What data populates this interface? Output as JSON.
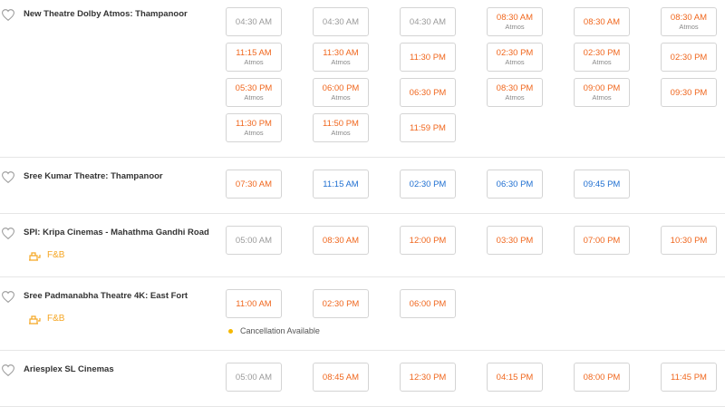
{
  "theatres": [
    {
      "name": "New Theatre Dolby Atmos: Thampanoor",
      "shows": [
        {
          "time": "04:30 AM",
          "color": "#9b9b9b"
        },
        {
          "time": "04:30 AM",
          "color": "#9b9b9b"
        },
        {
          "time": "04:30 AM",
          "color": "#9b9b9b"
        },
        {
          "time": "08:30 AM",
          "tag": "Atmos",
          "color": "#f0671e"
        },
        {
          "time": "08:30 AM",
          "color": "#f0671e"
        },
        {
          "time": "08:30 AM",
          "tag": "Atmos",
          "color": "#f0671e"
        },
        {
          "time": "11:15 AM",
          "tag": "Atmos",
          "color": "#f0671e"
        },
        {
          "time": "11:30 AM",
          "tag": "Atmos",
          "color": "#f0671e"
        },
        {
          "time": "11:30 PM",
          "color": "#f0671e"
        },
        {
          "time": "02:30 PM",
          "tag": "Atmos",
          "color": "#f0671e"
        },
        {
          "time": "02:30 PM",
          "tag": "Atmos",
          "color": "#f0671e"
        },
        {
          "time": "02:30 PM",
          "color": "#f0671e"
        },
        {
          "time": "05:30 PM",
          "tag": "Atmos",
          "color": "#f0671e"
        },
        {
          "time": "06:00 PM",
          "tag": "Atmos",
          "color": "#f0671e"
        },
        {
          "time": "06:30 PM",
          "color": "#f0671e"
        },
        {
          "time": "08:30 PM",
          "tag": "Atmos",
          "color": "#f0671e"
        },
        {
          "time": "09:00 PM",
          "tag": "Atmos",
          "color": "#f0671e"
        },
        {
          "time": "09:30 PM",
          "color": "#f0671e"
        },
        {
          "time": "11:30 PM",
          "tag": "Atmos",
          "color": "#f0671e"
        },
        {
          "time": "11:50 PM",
          "tag": "Atmos",
          "color": "#f0671e"
        },
        {
          "time": "11:59 PM",
          "color": "#f0671e"
        }
      ]
    },
    {
      "name": "Sree Kumar Theatre: Thampanoor",
      "shows": [
        {
          "time": "07:30 AM",
          "color": "#f0671e"
        },
        {
          "time": "11:15 AM",
          "color": "#1f6fd1"
        },
        {
          "time": "02:30 PM",
          "color": "#1f6fd1"
        },
        {
          "time": "06:30 PM",
          "color": "#1f6fd1"
        },
        {
          "time": "09:45 PM",
          "color": "#1f6fd1"
        }
      ]
    },
    {
      "name": "SPI: Kripa Cinemas - Mahathma Gandhi Road",
      "amenity": "F&B",
      "shows": [
        {
          "time": "05:00 AM",
          "color": "#9b9b9b"
        },
        {
          "time": "08:30 AM",
          "color": "#f0671e"
        },
        {
          "time": "12:00 PM",
          "color": "#f0671e"
        },
        {
          "time": "03:30 PM",
          "color": "#f0671e"
        },
        {
          "time": "07:00 PM",
          "color": "#f0671e"
        },
        {
          "time": "10:30 PM",
          "color": "#f0671e"
        }
      ]
    },
    {
      "name": "Sree Padmanabha Theatre 4K: East Fort",
      "amenity": "F&B",
      "note": "Cancellation Available",
      "shows": [
        {
          "time": "11:00 AM",
          "color": "#f0671e"
        },
        {
          "time": "02:30 PM",
          "color": "#f0671e"
        },
        {
          "time": "06:00 PM",
          "color": "#f0671e"
        }
      ]
    },
    {
      "name": "Ariesplex SL Cinemas",
      "shows": [
        {
          "time": "05:00 AM",
          "color": "#9b9b9b"
        },
        {
          "time": "08:45 AM",
          "color": "#f0671e"
        },
        {
          "time": "12:30 PM",
          "color": "#f0671e"
        },
        {
          "time": "04:15 PM",
          "color": "#f0671e"
        },
        {
          "time": "08:00 PM",
          "color": "#f0671e"
        },
        {
          "time": "11:45 PM",
          "color": "#f0671e"
        }
      ]
    }
  ]
}
